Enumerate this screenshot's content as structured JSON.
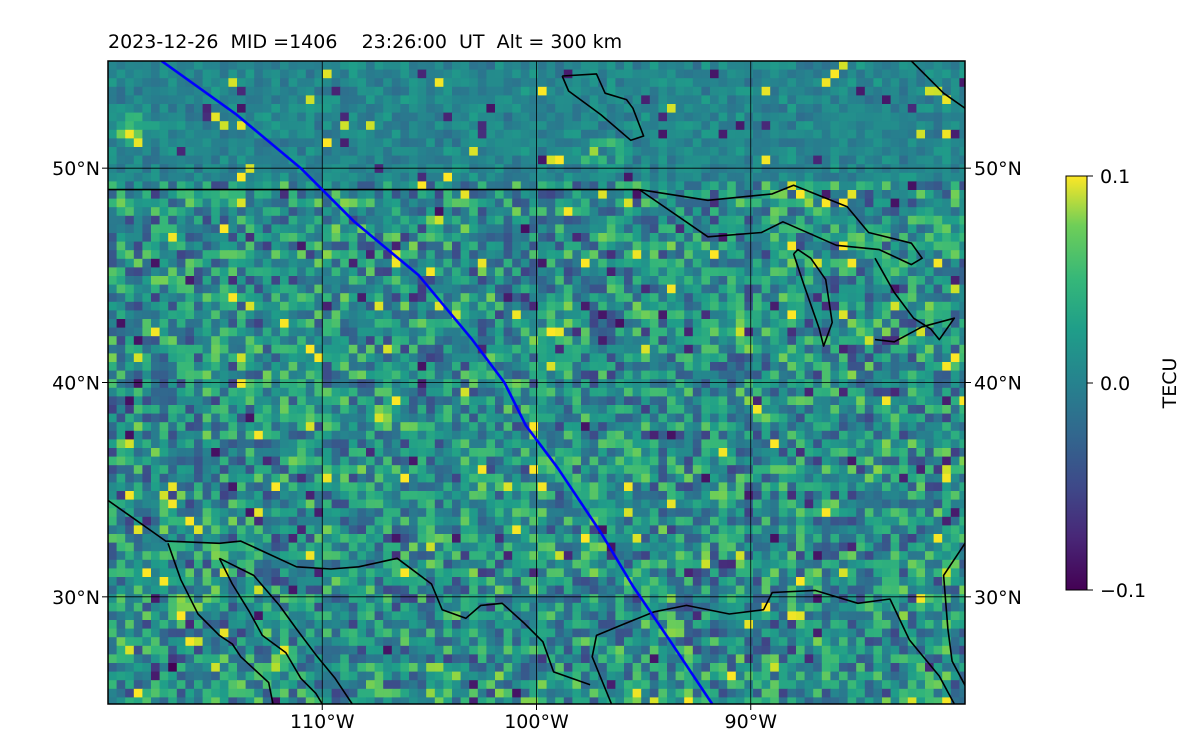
{
  "figure": {
    "title": "2023-12-26  MID =1406    23:26:00  UT  Alt = 300 km"
  },
  "chart_data": {
    "type": "heatmap",
    "title": "2023-12-26  MID =1406    23:26:00  UT  Alt = 300 km",
    "xlim": [
      -120,
      -80
    ],
    "ylim": [
      25,
      55
    ],
    "x_ticks": [
      -110,
      -100,
      -90
    ],
    "x_tick_labels": [
      "110°W",
      "100°W",
      "90°W"
    ],
    "y_ticks": [
      30,
      40,
      50
    ],
    "y_tick_labels": [
      "30°N",
      "40°N",
      "50°N"
    ],
    "grid": true,
    "colormap": "viridis",
    "colors": {
      "track": "#0000ff",
      "coastline": "#000000",
      "grid": "#000000"
    },
    "colorbar": {
      "label": "TECU",
      "range": [
        -0.1,
        0.1
      ],
      "ticks": [
        0.1,
        0.0,
        -0.1
      ],
      "tick_labels": [
        "0.1",
        "0.0",
        "−0.1"
      ]
    },
    "track": {
      "lon": [
        -117.5,
        -114,
        -111,
        -108.5,
        -105.5,
        -103,
        -101.5,
        -100.5,
        -99,
        -97,
        -95.5,
        -93.8,
        -91.8
      ],
      "lat": [
        55,
        52.5,
        50,
        47.5,
        45,
        42,
        40,
        38,
        36,
        33,
        30.5,
        28,
        25
      ]
    },
    "features": {
      "us_canada_border": {
        "lon": [
          -120,
          -95.2
        ],
        "lat": [
          49,
          49
        ]
      },
      "hudson_bay_coast": {
        "lon": [
          -98.8,
          -97.2,
          -96.8,
          -95.8,
          -95.5,
          -95,
          -95.6,
          -97,
          -98.5,
          -98.8
        ],
        "lat": [
          54.3,
          54.4,
          53.5,
          53.2,
          52.8,
          51.5,
          51.3,
          52.5,
          53.6,
          54.3
        ]
      },
      "lake_superior_etc": {
        "lon": [
          -95.2,
          -92,
          -89,
          -88,
          -85.5,
          -84.5,
          -82.5,
          -82,
          -82.5,
          -84,
          -86,
          -88.5,
          -89.5,
          -92,
          -95.2
        ],
        "lat": [
          49,
          48.5,
          48.8,
          49.2,
          48.2,
          47,
          46.5,
          45.8,
          45.5,
          46.2,
          46.4,
          47.5,
          47,
          46.8,
          49
        ]
      },
      "lake_michigan": {
        "lon": [
          -88,
          -87.5,
          -86.8,
          -86.6,
          -86.2,
          -86.5,
          -87.2,
          -87.8,
          -88
        ],
        "lat": [
          46,
          44.5,
          42.5,
          41.7,
          42.8,
          44.8,
          45.8,
          46.2,
          46
        ]
      },
      "lake_huron_erie": {
        "lon": [
          -84.2,
          -83.3,
          -82.4,
          -81.6,
          -81.2,
          -80.5,
          -82,
          -83.3,
          -84.2
        ],
        "lat": [
          45.8,
          44.2,
          43,
          42.5,
          42,
          43,
          42.6,
          41.9,
          42
        ]
      },
      "quebec_east": {
        "lon": [
          -82.5,
          -81,
          -80,
          -80
        ],
        "lat": [
          55,
          53.5,
          52.8,
          52.8
        ]
      },
      "east_coast": {
        "lon": [
          -80,
          -81,
          -80.8,
          -80.6,
          -79.8,
          -79.8
        ],
        "lat": [
          32.5,
          31,
          28.5,
          27,
          25.5,
          25
        ]
      },
      "gulf_coast": {
        "lon": [
          -96.5,
          -97.4,
          -97.2,
          -96,
          -94.5,
          -93,
          -91,
          -89.4,
          -89,
          -87,
          -85,
          -83.5,
          -82.6,
          -81.2,
          -80.5
        ],
        "lat": [
          25,
          27.2,
          28.2,
          28.7,
          29.3,
          29.6,
          29.2,
          29.4,
          30.2,
          30.3,
          29.7,
          29.9,
          28,
          26.3,
          25
        ]
      },
      "mexico_border": {
        "lon": [
          -120,
          -117.3,
          -114.8,
          -113.8,
          -111.2,
          -109.6,
          -108.3,
          -106.5,
          -104.9,
          -104.4,
          -103.3,
          -102.6,
          -101.6,
          -100.6,
          -99.7,
          -99.2,
          -97.5
        ],
        "lat": [
          34.5,
          32.6,
          32.5,
          32.6,
          31.4,
          31.3,
          31.4,
          31.8,
          30.6,
          29.4,
          29,
          29.6,
          29.7,
          28.8,
          27.9,
          26.5,
          25.9
        ]
      },
      "baja_peninsula": {
        "lon": [
          -117.2,
          -116.6,
          -115.8,
          -114.8,
          -114.2,
          -113.8,
          -112.5,
          -112.3
        ],
        "lat": [
          32.5,
          30.8,
          29.2,
          28.2,
          27.8,
          27.2,
          26.0,
          25.0
        ]
      },
      "gulf_of_california": {
        "lon": [
          -114.8,
          -114.2,
          -113.4,
          -112.8,
          -111.7,
          -111.0,
          -110.3,
          -110.0
        ],
        "lat": [
          31.8,
          30.6,
          29.3,
          28.2,
          27.4,
          26.2,
          25.5,
          25.0
        ]
      },
      "sonora_coast": {
        "lon": [
          -114.8,
          -113.2,
          -112.0,
          -111.2,
          -110.3,
          -109.4,
          -108.6
        ],
        "lat": [
          31.8,
          31.0,
          29.6,
          28.5,
          27.3,
          26.2,
          25.0
        ]
      }
    }
  }
}
